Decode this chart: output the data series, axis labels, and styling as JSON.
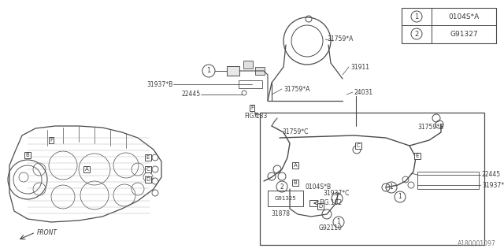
{
  "bg_color": "#ffffff",
  "line_color": "#4a4a4a",
  "text_color": "#3a3a3a",
  "watermark": "A180001097",
  "legend": [
    {
      "symbol": "1",
      "label": "0104S*A"
    },
    {
      "symbol": "2",
      "label": "G91327"
    }
  ],
  "figsize": [
    6.4,
    3.2
  ],
  "dpi": 100
}
